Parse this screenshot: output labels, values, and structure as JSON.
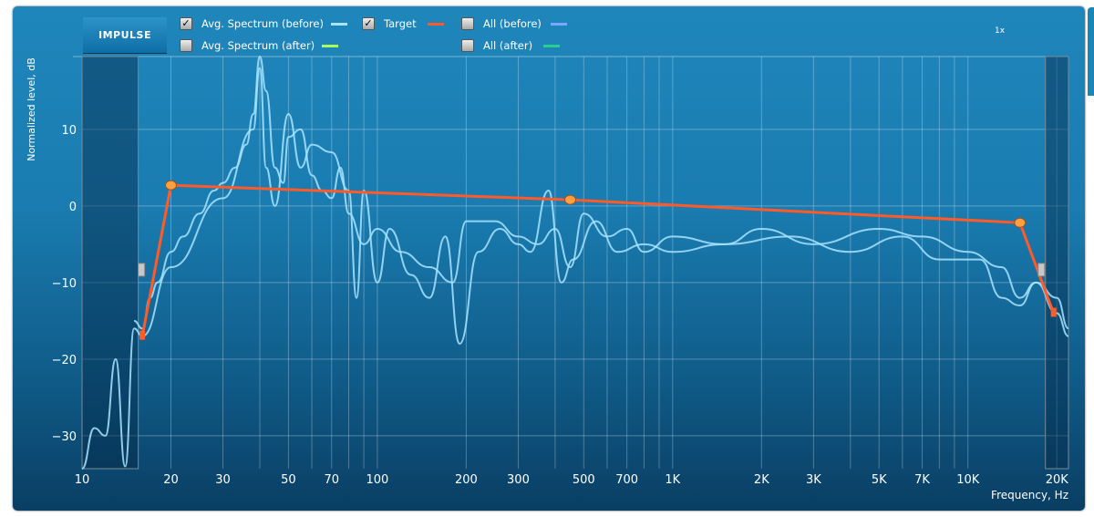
{
  "toolbar": {
    "impulse_label": "IMPULSE",
    "zoom_label": "1x"
  },
  "legend": [
    {
      "label": "Avg. Spectrum (before)",
      "checked": true,
      "color": "#a8e4ff"
    },
    {
      "label": "Avg. Spectrum (after)",
      "checked": false,
      "color": "#a6ff5a"
    },
    {
      "label": "Target",
      "checked": true,
      "color": "#ff5a28"
    },
    {
      "label": "All (before)",
      "checked": false,
      "color": "#7aa8ff"
    },
    {
      "label": "All (after)",
      "checked": false,
      "color": "#28d090"
    }
  ],
  "chart_data": {
    "type": "line",
    "xlabel": "Frequency, Hz",
    "ylabel": "Normalized level, dB",
    "xscale": "log",
    "xlim": [
      10,
      21900
    ],
    "ylim": [
      -34.3,
      19.5
    ],
    "grid": true,
    "xticks": [
      {
        "v": 10,
        "l": "10"
      },
      {
        "v": 20,
        "l": "20"
      },
      {
        "v": 30,
        "l": "30"
      },
      {
        "v": 50,
        "l": "50"
      },
      {
        "v": 70,
        "l": "70"
      },
      {
        "v": 100,
        "l": "100"
      },
      {
        "v": 200,
        "l": "200"
      },
      {
        "v": 300,
        "l": "300"
      },
      {
        "v": 500,
        "l": "500"
      },
      {
        "v": 700,
        "l": "700"
      },
      {
        "v": 1000,
        "l": "1K"
      },
      {
        "v": 2000,
        "l": "2K"
      },
      {
        "v": 3000,
        "l": "3K"
      },
      {
        "v": 5000,
        "l": "5K"
      },
      {
        "v": 7000,
        "l": "7K"
      },
      {
        "v": 10000,
        "l": "10K"
      },
      {
        "v": 20000,
        "l": "20K"
      }
    ],
    "yticks": [
      10,
      0,
      -10,
      -20,
      -30
    ],
    "excluded_ranges": [
      [
        10,
        15.5
      ],
      [
        18300,
        21900
      ]
    ],
    "series": [
      {
        "color": "#a8e4ff",
        "points": [
          [
            15,
            -15
          ],
          [
            16,
            -16
          ],
          [
            17,
            -12
          ],
          [
            18,
            -10
          ],
          [
            20,
            -6
          ],
          [
            22,
            -4
          ],
          [
            25,
            -1
          ],
          [
            28,
            2
          ],
          [
            30,
            3
          ],
          [
            33,
            5
          ],
          [
            36,
            8
          ],
          [
            38,
            12
          ],
          [
            40,
            20
          ],
          [
            42,
            15
          ],
          [
            45,
            5
          ],
          [
            48,
            3
          ],
          [
            50,
            9
          ],
          [
            55,
            10
          ],
          [
            60,
            4
          ],
          [
            65,
            2
          ],
          [
            70,
            1
          ],
          [
            75,
            5
          ],
          [
            80,
            -1
          ],
          [
            90,
            -5
          ],
          [
            100,
            -3
          ],
          [
            120,
            -6
          ],
          [
            150,
            -8
          ],
          [
            180,
            -10
          ],
          [
            200,
            -2
          ],
          [
            250,
            -2
          ],
          [
            300,
            -4
          ],
          [
            350,
            -5
          ],
          [
            400,
            -3
          ],
          [
            450,
            -8
          ],
          [
            500,
            -1
          ],
          [
            600,
            -4
          ],
          [
            700,
            -3
          ],
          [
            800,
            -6
          ],
          [
            1000,
            -4
          ],
          [
            1500,
            -5
          ],
          [
            2000,
            -3
          ],
          [
            3000,
            -5
          ],
          [
            5000,
            -3
          ],
          [
            7000,
            -4
          ],
          [
            10000,
            -6
          ],
          [
            13000,
            -8
          ],
          [
            15000,
            -12
          ],
          [
            17000,
            -10
          ],
          [
            20000,
            -14
          ],
          [
            21900,
            -17
          ]
        ]
      },
      {
        "color": "#a8e4ff",
        "points": [
          [
            10,
            -35
          ],
          [
            11,
            -29
          ],
          [
            12,
            -30
          ],
          [
            13,
            -20
          ],
          [
            14,
            -34
          ],
          [
            15,
            -16
          ],
          [
            16,
            -17
          ],
          [
            20,
            -8
          ],
          [
            30,
            1
          ],
          [
            38,
            10
          ],
          [
            40,
            18
          ],
          [
            42,
            5
          ],
          [
            45,
            0
          ],
          [
            50,
            12
          ],
          [
            55,
            5
          ],
          [
            60,
            8
          ],
          [
            70,
            7
          ],
          [
            80,
            2
          ],
          [
            85,
            -12
          ],
          [
            90,
            2
          ],
          [
            100,
            -10
          ],
          [
            110,
            -3
          ],
          [
            130,
            -9
          ],
          [
            150,
            -12
          ],
          [
            170,
            -4
          ],
          [
            190,
            -18
          ],
          [
            220,
            -6
          ],
          [
            260,
            -3
          ],
          [
            300,
            -5
          ],
          [
            330,
            -6
          ],
          [
            380,
            2
          ],
          [
            420,
            -10
          ],
          [
            460,
            -7
          ],
          [
            550,
            -2
          ],
          [
            650,
            -6
          ],
          [
            800,
            -5
          ],
          [
            1000,
            -6
          ],
          [
            1500,
            -5
          ],
          [
            2500,
            -4
          ],
          [
            4000,
            -6
          ],
          [
            6000,
            -4
          ],
          [
            8000,
            -7
          ],
          [
            11000,
            -7
          ],
          [
            13000,
            -12
          ],
          [
            15000,
            -13
          ],
          [
            17000,
            -10
          ],
          [
            20000,
            -12
          ],
          [
            21900,
            -16
          ]
        ]
      },
      {
        "name": "Target",
        "color": "#ff5a28",
        "points": [
          [
            16,
            -17
          ],
          [
            20,
            2.7
          ],
          [
            450,
            0.8
          ],
          [
            15000,
            -2.2
          ],
          [
            19500,
            -14
          ]
        ],
        "handles": [
          [
            20,
            2.7
          ],
          [
            450,
            0.8
          ],
          [
            15000,
            -2.2
          ]
        ]
      }
    ]
  }
}
